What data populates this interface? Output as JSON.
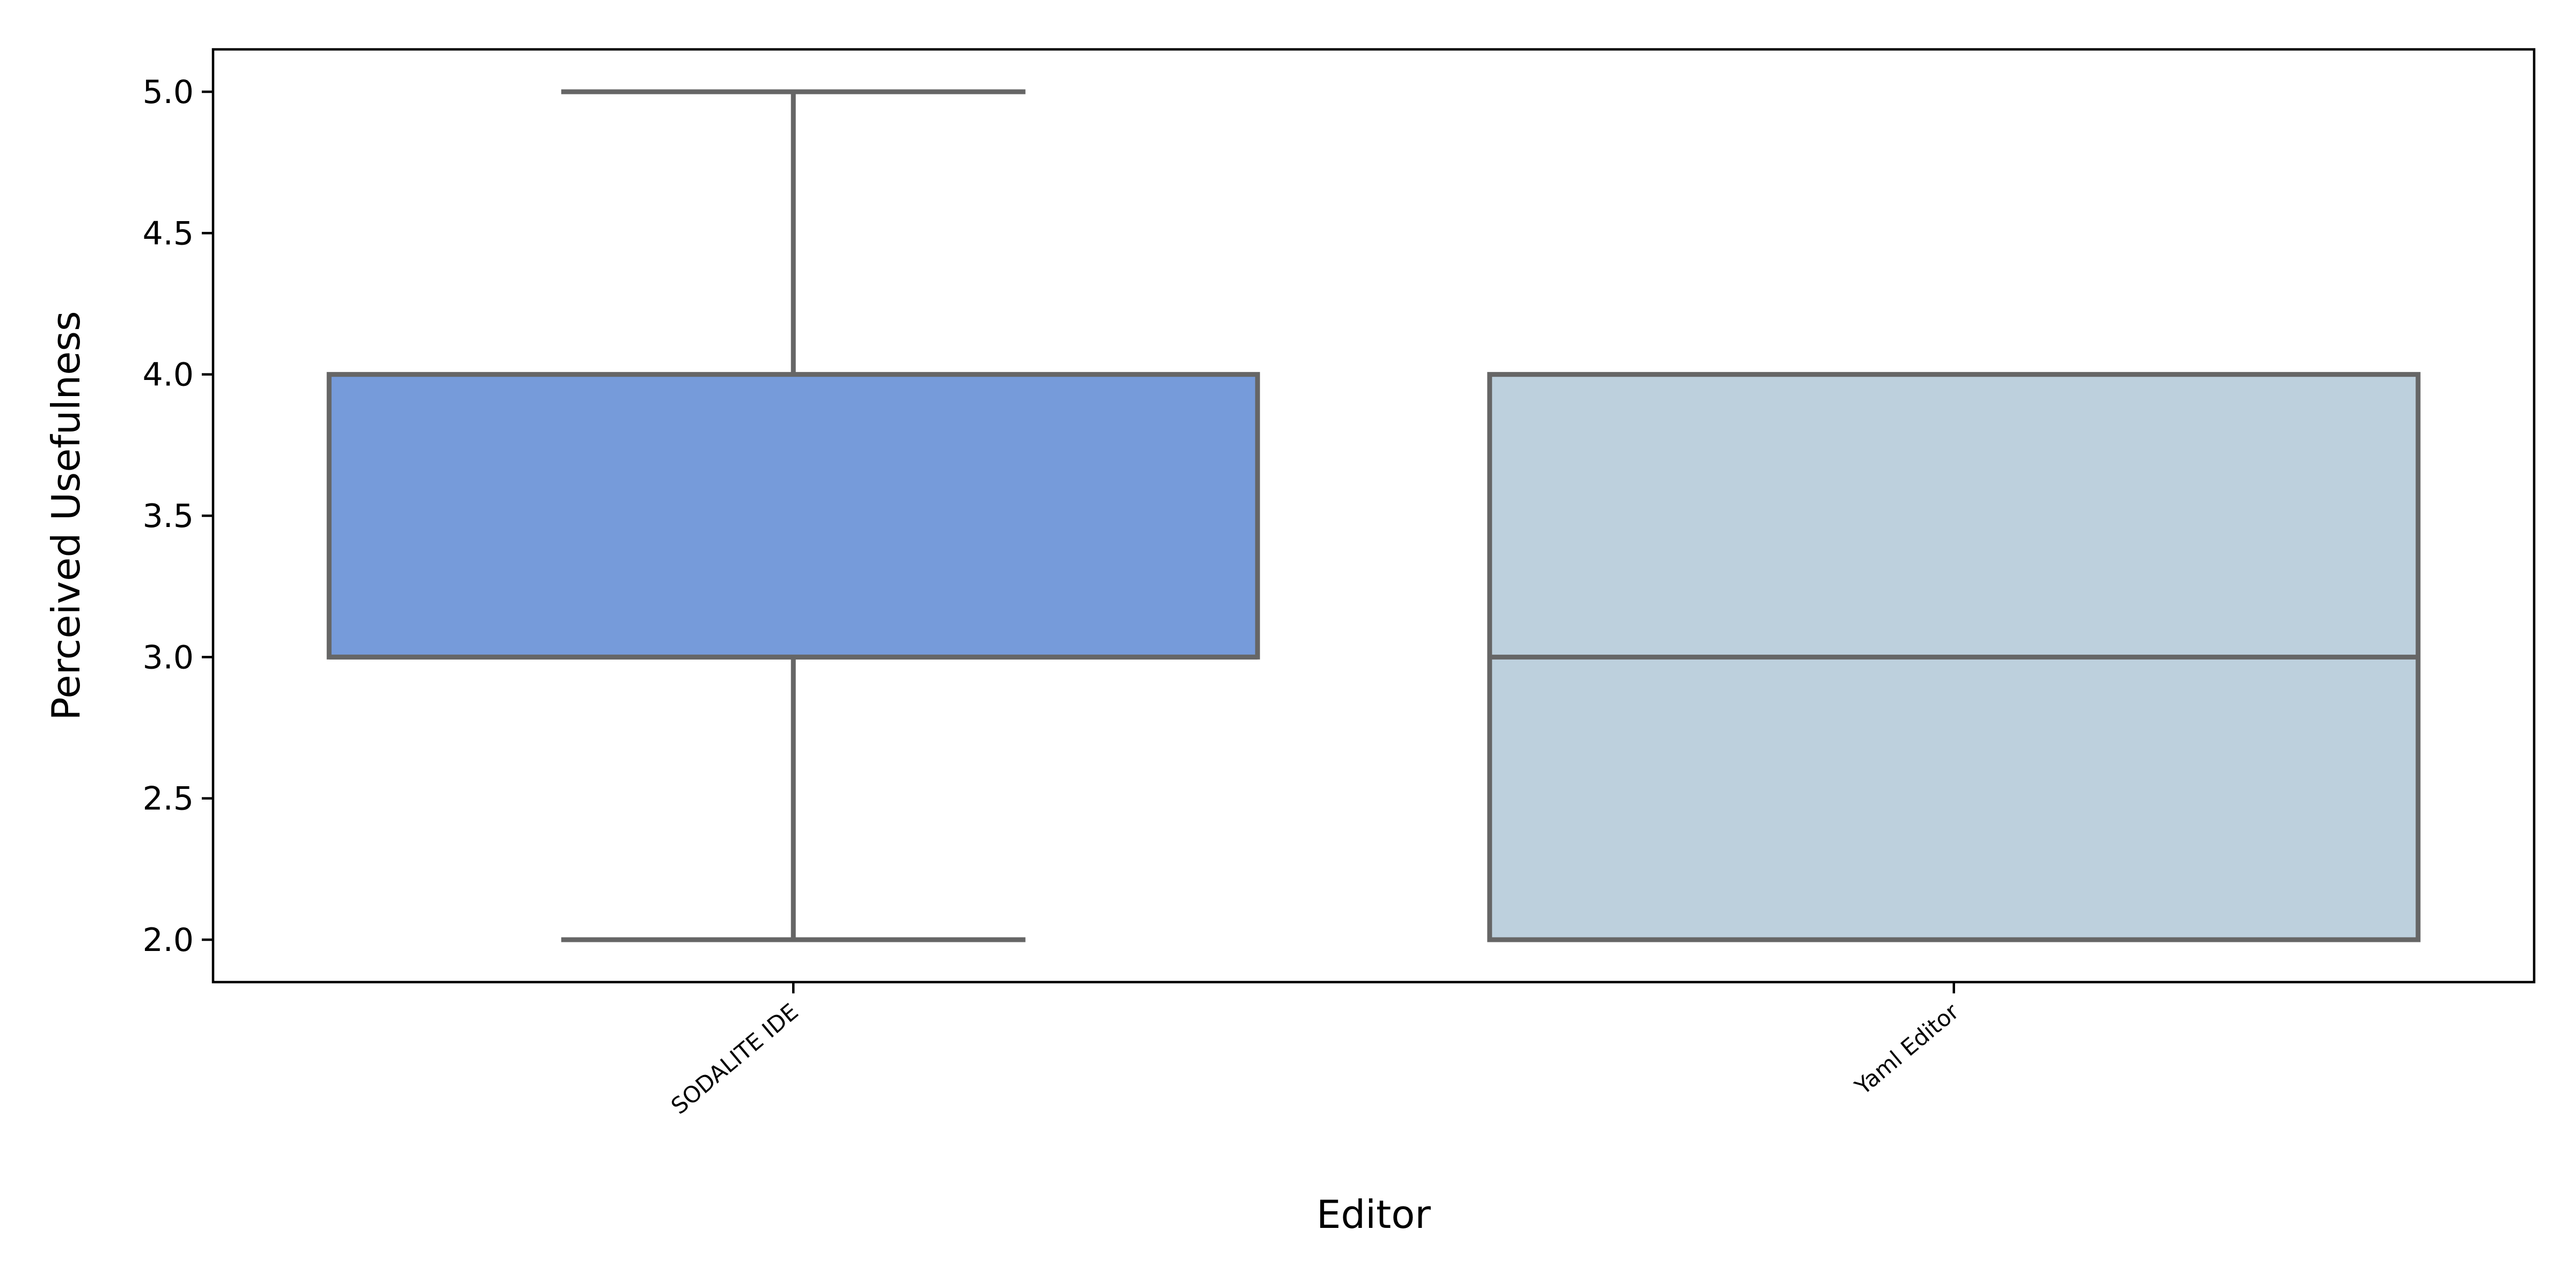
{
  "chart_data": {
    "type": "boxplot",
    "title": "",
    "xlabel": "Editor",
    "ylabel": "Perceived Usefulness",
    "ylim": [
      1.85,
      5.15
    ],
    "yticks": [
      2.0,
      2.5,
      3.0,
      3.5,
      4.0,
      4.5,
      5.0
    ],
    "ytick_labels": [
      "2.0",
      "2.5",
      "3.0",
      "3.5",
      "4.0",
      "4.5",
      "5.0"
    ],
    "grid": false,
    "legend": "none",
    "categories": [
      "SODALITE IDE",
      "Yaml Editor"
    ],
    "boxes": [
      {
        "category": "SODALITE IDE",
        "whisker_low": 2.0,
        "q1": 3.0,
        "median": 3.0,
        "q3": 4.0,
        "whisker_high": 5.0,
        "color": "#769BDA"
      },
      {
        "category": "Yaml Editor",
        "whisker_low": 2.0,
        "q1": 2.0,
        "median": 3.0,
        "q3": 4.0,
        "whisker_high": 4.0,
        "color": "#BDD0DD"
      }
    ],
    "line_color": "#666666"
  }
}
